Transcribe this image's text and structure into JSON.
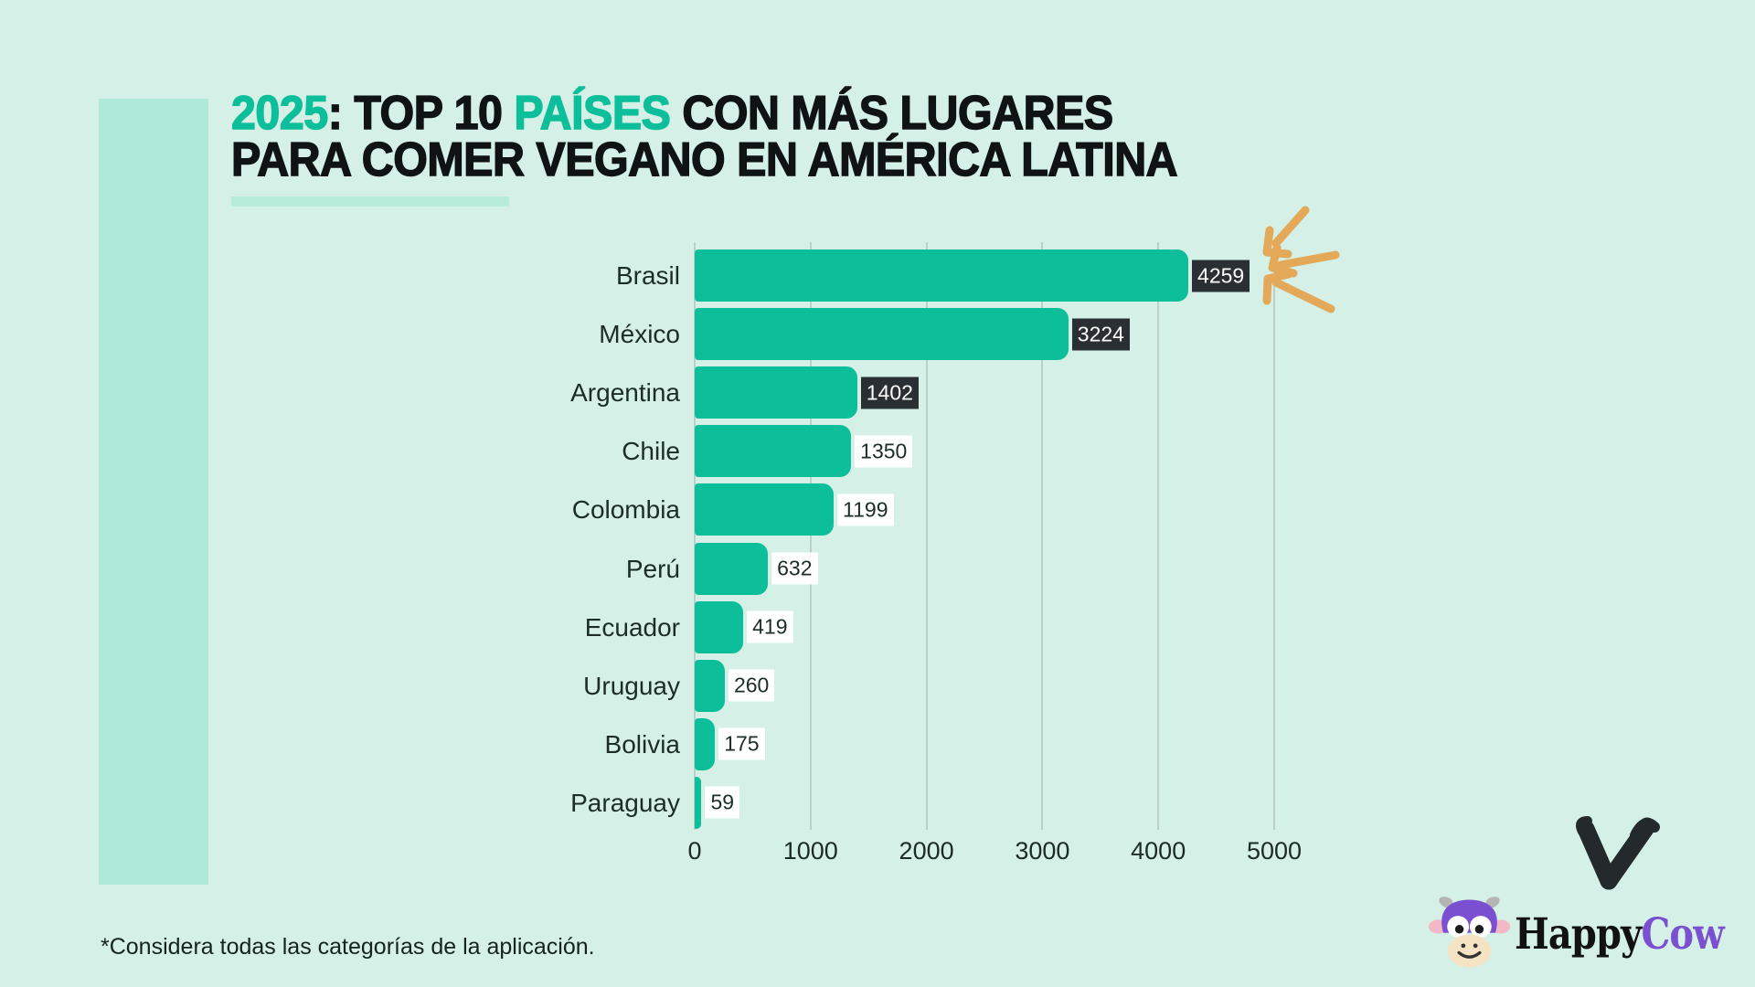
{
  "title": {
    "seg1": "2025",
    "seg2": ": TOP 10 ",
    "seg3": "PAÍSES",
    "seg4": " CON MÁS LUGARES",
    "line2": "PARA COMER VEGANO EN AMÉRICA LATINA"
  },
  "chart_data": {
    "type": "bar",
    "orientation": "horizontal",
    "title": "2025: TOP 10 PAÍSES CON MÁS LUGARES PARA COMER VEGANO EN AMÉRICA LATINA",
    "categories": [
      "Brasil",
      "México",
      "Argentina",
      "Chile",
      "Colombia",
      "Perú",
      "Ecuador",
      "Uruguay",
      "Bolivia",
      "Paraguay"
    ],
    "values": [
      4259,
      3224,
      1402,
      1350,
      1199,
      632,
      419,
      260,
      175,
      59
    ],
    "xlim": [
      0,
      5000
    ],
    "x_ticks": [
      0,
      1000,
      2000,
      3000,
      4000,
      5000
    ],
    "bar_color": "#0cbf9a",
    "badge_styles": [
      "dark",
      "dark",
      "dark",
      "light",
      "light",
      "light",
      "light",
      "light",
      "light",
      "light"
    ],
    "grid": true,
    "legend": false
  },
  "footnote": "*Considera todas las categorías de la aplicación.",
  "logo": {
    "word1": "Happy",
    "word2": "Cow"
  },
  "colors": {
    "background": "#d5f0e6",
    "panel": "#afe9d7",
    "accent_teal": "#0cbf9a",
    "dark_text": "#101314",
    "badge_dark": "#2a2f33",
    "gridline": "#bccfc8",
    "arrow_orange": "#e3a958",
    "brand_purple": "#7a4fd0",
    "heart_black": "#24292b"
  }
}
